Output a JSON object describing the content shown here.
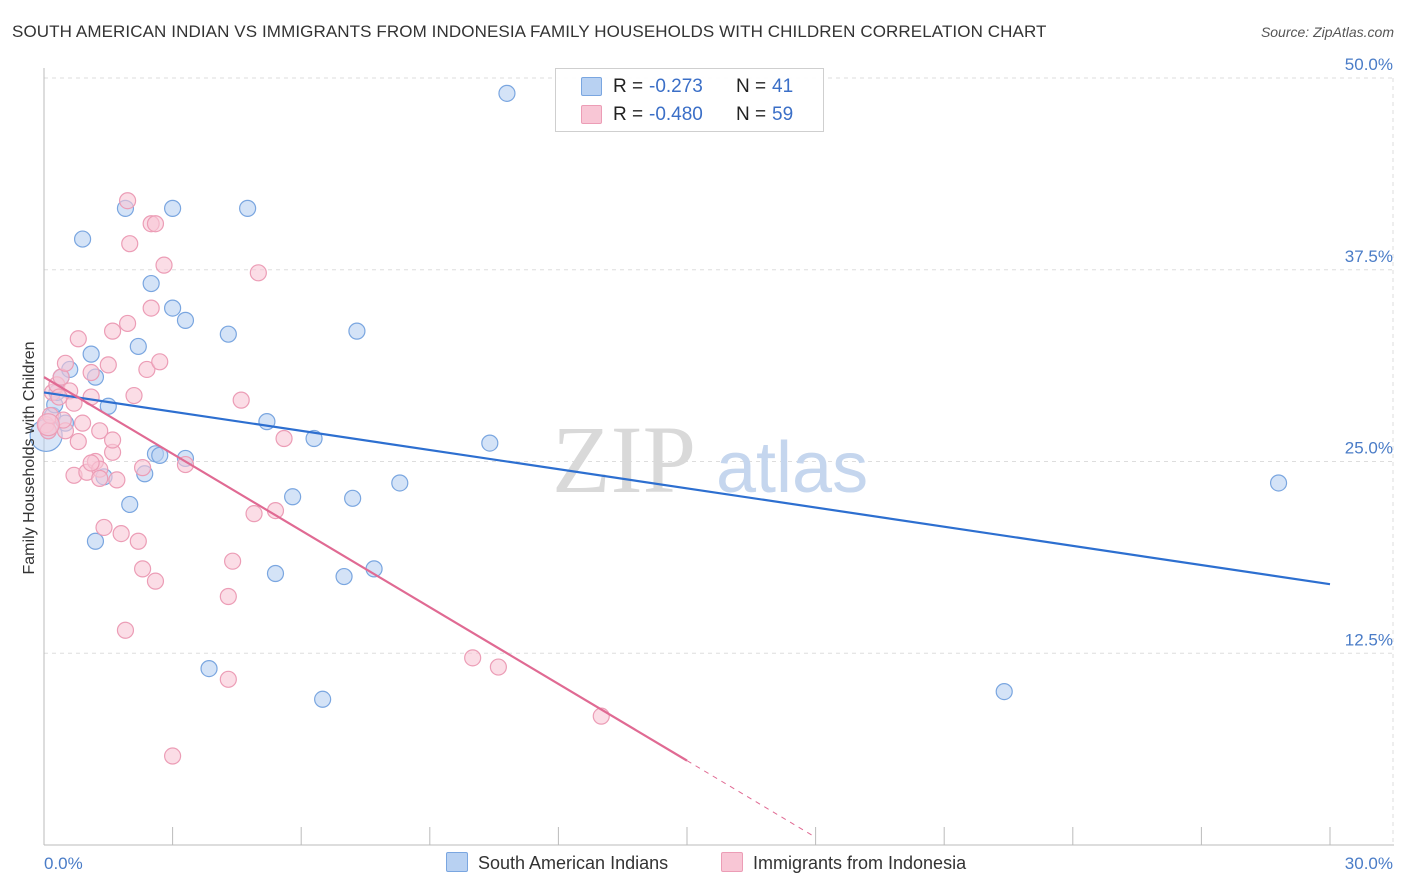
{
  "title": "SOUTH AMERICAN INDIAN VS IMMIGRANTS FROM INDONESIA FAMILY HOUSEHOLDS WITH CHILDREN CORRELATION CHART",
  "source": "Source: ZipAtlas.com",
  "watermark": {
    "zip": "ZIP",
    "atlas": "atlas"
  },
  "legend": {
    "rows": [
      {
        "r_label": "R =",
        "r_value": "-0.273",
        "n_label": "N =",
        "n_value": "41"
      },
      {
        "r_label": "R =",
        "r_value": "-0.480",
        "n_label": "N =",
        "n_value": "59"
      }
    ]
  },
  "bottom_legend": {
    "series1": "South American Indians",
    "series2": "Immigrants from Indonesia"
  },
  "colors": {
    "blue_fill": "#b8d1f2",
    "blue_stroke": "#7aa6e0",
    "blue_line": "#2d6fd0",
    "pink_fill": "#f8c6d5",
    "pink_stroke": "#ec9db6",
    "pink_line": "#e06a93",
    "grid": "#dddddd",
    "axis_text": "#4a7cc7"
  },
  "chart_data": {
    "type": "scatter",
    "title": "SOUTH AMERICAN INDIAN VS IMMIGRANTS FROM INDONESIA FAMILY HOUSEHOLDS WITH CHILDREN CORRELATION CHART",
    "xlabel": "",
    "ylabel": "Family Households with Children",
    "xlim": [
      0,
      30
    ],
    "ylim": [
      0,
      50
    ],
    "x_tick_labels": [
      "0.0%",
      "30.0%"
    ],
    "y_ticks": [
      12.5,
      25.0,
      37.5,
      50.0
    ],
    "y_tick_labels": [
      "12.5%",
      "25.0%",
      "37.5%",
      "50.0%"
    ],
    "grid": true,
    "legend_position": "top-center",
    "series": [
      {
        "name": "South American Indians",
        "color": "#b8d1f2",
        "R": -0.273,
        "N": 41,
        "trend": {
          "x0": 0.0,
          "y0": 29.5,
          "x1": 30.0,
          "y1": 17.0,
          "dashed_from": null
        },
        "points": [
          [
            0.1,
            27.0
          ],
          [
            0.2,
            28.0
          ],
          [
            0.25,
            28.7
          ],
          [
            0.3,
            29.5
          ],
          [
            0.4,
            30.5
          ],
          [
            0.5,
            27.5
          ],
          [
            0.6,
            31.0
          ],
          [
            0.9,
            39.5
          ],
          [
            1.1,
            32.0
          ],
          [
            1.2,
            30.5
          ],
          [
            1.2,
            19.8
          ],
          [
            1.4,
            24.0
          ],
          [
            1.5,
            28.6
          ],
          [
            1.9,
            41.5
          ],
          [
            2.0,
            22.2
          ],
          [
            2.2,
            32.5
          ],
          [
            2.35,
            24.2
          ],
          [
            2.5,
            36.6
          ],
          [
            2.6,
            25.5
          ],
          [
            2.7,
            25.4
          ],
          [
            3.0,
            41.5
          ],
          [
            3.0,
            35.0
          ],
          [
            3.3,
            34.2
          ],
          [
            3.3,
            25.2
          ],
          [
            3.85,
            11.5
          ],
          [
            4.3,
            33.3
          ],
          [
            4.75,
            41.5
          ],
          [
            5.2,
            27.6
          ],
          [
            5.4,
            17.7
          ],
          [
            5.8,
            22.7
          ],
          [
            6.3,
            26.5
          ],
          [
            6.5,
            9.5
          ],
          [
            7.0,
            17.5
          ],
          [
            7.2,
            22.6
          ],
          [
            7.3,
            33.5
          ],
          [
            7.7,
            18.0
          ],
          [
            8.3,
            23.6
          ],
          [
            10.4,
            26.2
          ],
          [
            10.8,
            49.0
          ],
          [
            22.4,
            10.0
          ],
          [
            28.8,
            23.6
          ]
        ]
      },
      {
        "name": "Immigrants from Indonesia",
        "color": "#f8c6d5",
        "R": -0.48,
        "N": 59,
        "trend": {
          "x0": 0.0,
          "y0": 30.5,
          "x1": 18.0,
          "y1": 0.5,
          "dashed_from": 15.0
        },
        "points": [
          [
            0.05,
            27.4
          ],
          [
            0.1,
            27.0
          ],
          [
            0.15,
            28.0
          ],
          [
            0.2,
            29.5
          ],
          [
            0.3,
            30.0
          ],
          [
            0.4,
            30.5
          ],
          [
            0.5,
            31.4
          ],
          [
            0.5,
            27.0
          ],
          [
            0.6,
            29.6
          ],
          [
            0.7,
            28.8
          ],
          [
            0.7,
            24.1
          ],
          [
            0.8,
            33.0
          ],
          [
            0.8,
            26.3
          ],
          [
            0.9,
            27.5
          ],
          [
            1.0,
            24.3
          ],
          [
            1.1,
            29.2
          ],
          [
            1.1,
            30.8
          ],
          [
            1.2,
            25.0
          ],
          [
            1.3,
            24.5
          ],
          [
            1.3,
            23.9
          ],
          [
            1.3,
            27.0
          ],
          [
            1.4,
            20.7
          ],
          [
            1.5,
            31.3
          ],
          [
            1.6,
            33.5
          ],
          [
            1.6,
            25.6
          ],
          [
            1.7,
            23.8
          ],
          [
            1.8,
            20.3
          ],
          [
            1.9,
            14.0
          ],
          [
            1.95,
            42.0
          ],
          [
            1.95,
            34.0
          ],
          [
            2.0,
            39.2
          ],
          [
            2.1,
            29.3
          ],
          [
            2.2,
            19.8
          ],
          [
            2.3,
            18.0
          ],
          [
            2.3,
            24.6
          ],
          [
            2.4,
            31.0
          ],
          [
            2.5,
            35.0
          ],
          [
            2.5,
            40.5
          ],
          [
            2.6,
            40.5
          ],
          [
            2.6,
            17.2
          ],
          [
            2.7,
            31.5
          ],
          [
            2.8,
            37.8
          ],
          [
            3.0,
            5.8
          ],
          [
            3.3,
            24.8
          ],
          [
            4.3,
            16.2
          ],
          [
            4.3,
            10.8
          ],
          [
            4.4,
            18.5
          ],
          [
            4.6,
            29.0
          ],
          [
            4.9,
            21.6
          ],
          [
            5.0,
            37.3
          ],
          [
            5.4,
            21.8
          ],
          [
            5.6,
            26.5
          ],
          [
            10.0,
            12.2
          ],
          [
            10.6,
            11.6
          ],
          [
            13.0,
            8.4
          ],
          [
            1.1,
            24.9
          ],
          [
            0.45,
            27.7
          ],
          [
            1.6,
            26.4
          ],
          [
            0.35,
            29.2
          ]
        ]
      }
    ]
  }
}
